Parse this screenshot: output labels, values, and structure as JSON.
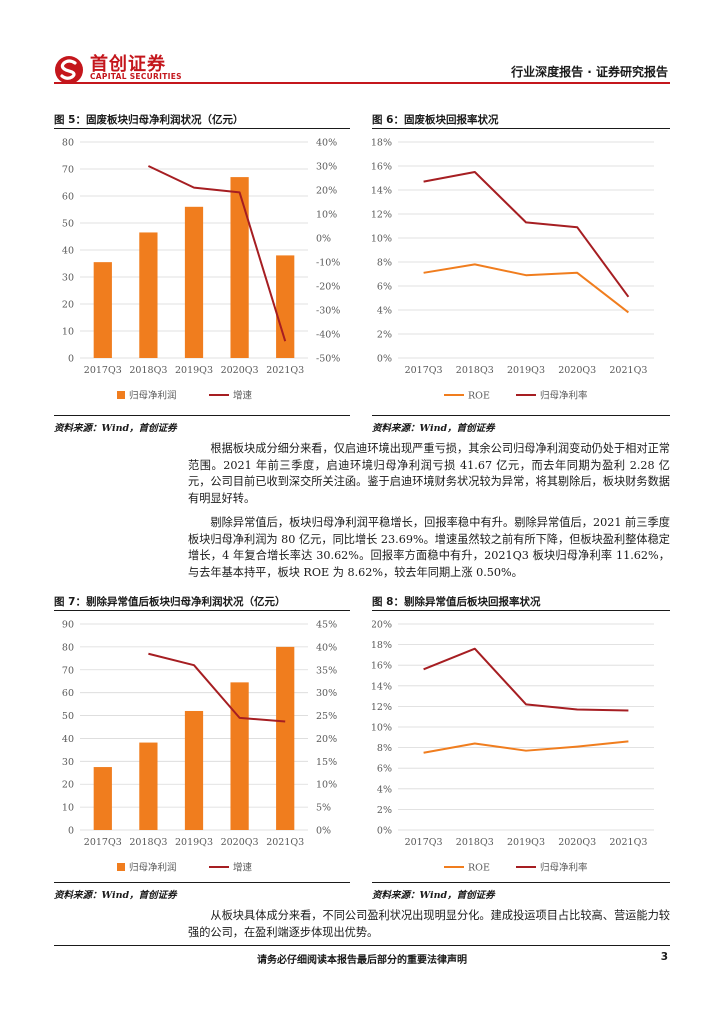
{
  "header": {
    "logo_cn": "首创证券",
    "logo_en": "CAPITAL SECURITIES",
    "report_type": "行业深度报告 · 证券研究报告",
    "brand_color": "#c4161c"
  },
  "figures": {
    "fig5": {
      "title": "图 5：固废板块归母净利润状况（亿元）",
      "source": "资料来源：Wind，首创证券"
    },
    "fig6": {
      "title": "图 6：固废板块回报率状况",
      "source": "资料来源：Wind，首创证券"
    },
    "fig7": {
      "title": "图 7：剔除异常值后板块归母净利润状况（亿元）",
      "source": "资料来源：Wind，首创证券"
    },
    "fig8": {
      "title": "图 8：剔除异常值后板块回报率状况",
      "source": "资料来源：Wind，首创证券"
    }
  },
  "paragraphs": {
    "p1": "根据板块成分细分来看，仅启迪环境出现严重亏损，其余公司归母净利润变动仍处于相对正常范围。2021 年前三季度，启迪环境归母净利润亏损 41.67 亿元，而去年同期为盈利 2.28 亿元，公司目前已收到深交所关注函。鉴于启迪环境财务状况较为异常，将其剔除后，板块财务数据有明显好转。",
    "p2": "剔除异常值后，板块归母净利润平稳增长，回报率稳中有升。剔除异常值后，2021 前三季度板块归母净利润为 80 亿元，同比增长 23.69%。增速虽然较之前有所下降，但板块盈利整体稳定增长，4 年复合增长率达 30.62%。回报率方面稳中有升，2021Q3 板块归母净利率 11.62%，与去年基本持平，板块 ROE 为 8.62%，较去年同期上涨 0.50%。",
    "p3": "从板块具体成分来看，不同公司盈利状况出现明显分化。建成投运项目占比较高、营运能力较强的公司，在盈利端逐步体现出优势。"
  },
  "footer": {
    "disclaimer": "请务必仔细阅读本报告最后部分的重要法律声明",
    "page_number": "3"
  },
  "chart_data": [
    {
      "id": "fig5",
      "type": "bar",
      "categories": [
        "2017Q3",
        "2018Q3",
        "2019Q3",
        "2020Q3",
        "2021Q3"
      ],
      "series": [
        {
          "name": "归母净利润",
          "kind": "bar",
          "axis": "left",
          "values": [
            35.5,
            46.5,
            56,
            67,
            38
          ],
          "color": "#f07d1e"
        },
        {
          "name": "增速",
          "kind": "line",
          "axis": "right",
          "values": [
            null,
            30,
            21,
            19,
            -43
          ],
          "color": "#a61e22"
        }
      ],
      "ylim": [
        0,
        80
      ],
      "yticks": [
        0,
        10,
        20,
        30,
        40,
        50,
        60,
        70,
        80
      ],
      "y2lim": [
        -50,
        40
      ],
      "y2ticks": [
        "-50%",
        "-40%",
        "-30%",
        "-20%",
        "-10%",
        "0%",
        "10%",
        "20%",
        "30%",
        "40%"
      ],
      "legend": "bottom"
    },
    {
      "id": "fig6",
      "type": "line",
      "categories": [
        "2017Q3",
        "2018Q3",
        "2019Q3",
        "2020Q3",
        "2021Q3"
      ],
      "series": [
        {
          "name": "ROE",
          "kind": "line",
          "axis": "left",
          "values": [
            7.1,
            7.8,
            6.9,
            7.1,
            3.8
          ],
          "color": "#f07d1e"
        },
        {
          "name": "归母净利率",
          "kind": "line",
          "axis": "left",
          "values": [
            14.7,
            15.5,
            11.3,
            10.9,
            5.1
          ],
          "color": "#a61e22"
        }
      ],
      "ylim": [
        0,
        18
      ],
      "yticks": [
        "0%",
        "2%",
        "4%",
        "6%",
        "8%",
        "10%",
        "12%",
        "14%",
        "16%",
        "18%"
      ],
      "legend": "bottom"
    },
    {
      "id": "fig7",
      "type": "bar",
      "categories": [
        "2017Q3",
        "2018Q3",
        "2019Q3",
        "2020Q3",
        "2021Q3"
      ],
      "series": [
        {
          "name": "归母净利润",
          "kind": "bar",
          "axis": "left",
          "values": [
            27.5,
            38.2,
            52,
            64.5,
            80
          ],
          "color": "#f07d1e"
        },
        {
          "name": "增速",
          "kind": "line",
          "axis": "right",
          "values": [
            null,
            38.5,
            36,
            24.5,
            23.7
          ],
          "color": "#a61e22"
        }
      ],
      "ylim": [
        0,
        90
      ],
      "yticks": [
        0,
        10,
        20,
        30,
        40,
        50,
        60,
        70,
        80,
        90
      ],
      "y2lim": [
        0,
        45
      ],
      "y2ticks": [
        "0%",
        "5%",
        "10%",
        "15%",
        "20%",
        "25%",
        "30%",
        "35%",
        "40%",
        "45%"
      ],
      "legend": "bottom"
    },
    {
      "id": "fig8",
      "type": "line",
      "categories": [
        "2017Q3",
        "2018Q3",
        "2019Q3",
        "2020Q3",
        "2021Q3"
      ],
      "series": [
        {
          "name": "ROE",
          "kind": "line",
          "axis": "left",
          "values": [
            7.5,
            8.4,
            7.7,
            8.1,
            8.6
          ],
          "color": "#f07d1e"
        },
        {
          "name": "归母净利率",
          "kind": "line",
          "axis": "left",
          "values": [
            15.6,
            17.6,
            12.2,
            11.7,
            11.6
          ],
          "color": "#a61e22"
        }
      ],
      "ylim": [
        0,
        20
      ],
      "yticks": [
        "0%",
        "2%",
        "4%",
        "6%",
        "8%",
        "10%",
        "12%",
        "14%",
        "16%",
        "18%",
        "20%"
      ],
      "legend": "bottom"
    }
  ]
}
